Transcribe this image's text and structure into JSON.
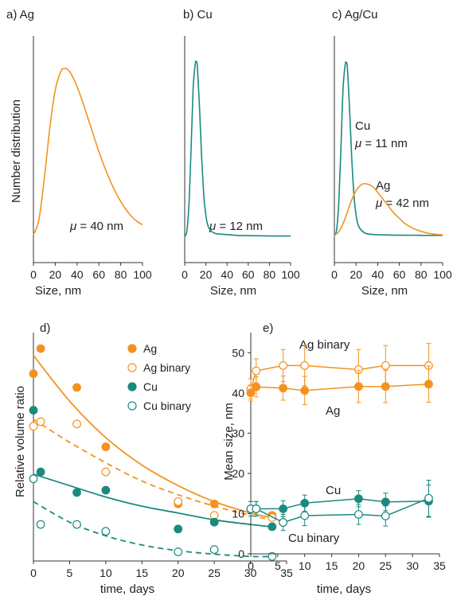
{
  "colors": {
    "ag": "#f39221",
    "cu": "#1a8a80",
    "axis": "#333333",
    "text": "#222222"
  },
  "chart_data": [
    {
      "id": "a",
      "type": "line",
      "title": "a) Ag",
      "xlabel": "Size, nm",
      "ylabel": "Number distribution",
      "xlim": [
        0,
        100
      ],
      "xticks": [
        "0",
        "20",
        "40",
        "60",
        "80",
        "100"
      ],
      "x": [
        0,
        5,
        10,
        15,
        20,
        25,
        28,
        32,
        36,
        40,
        45,
        50,
        55,
        60,
        65,
        70,
        75,
        80,
        85,
        90,
        95,
        100
      ],
      "series": [
        {
          "color": "ag",
          "values": [
            0,
            0.09,
            0.34,
            0.64,
            0.87,
            0.98,
            1.0,
            0.99,
            0.95,
            0.89,
            0.8,
            0.7,
            0.6,
            0.5,
            0.41,
            0.33,
            0.26,
            0.2,
            0.15,
            0.11,
            0.08,
            0.06
          ]
        }
      ],
      "annotations": [
        {
          "text": "μ = 40 nm",
          "symbol": "μ",
          "rest": " = 40 nm",
          "x": 33,
          "y": 0.1
        }
      ]
    },
    {
      "id": "b",
      "type": "line",
      "title": "b) Cu",
      "xlabel": "Size, nm",
      "xlim": [
        0,
        100
      ],
      "xticks": [
        "0",
        "20",
        "40",
        "60",
        "80",
        "100"
      ],
      "x": [
        0,
        2,
        4,
        6,
        8,
        10,
        11,
        12,
        14,
        16,
        18,
        20,
        22,
        25,
        30,
        40,
        50,
        60,
        70,
        80,
        90,
        100
      ],
      "series": [
        {
          "color": "cu",
          "values": [
            0,
            0.03,
            0.18,
            0.5,
            0.85,
            0.99,
            1.0,
            0.97,
            0.74,
            0.45,
            0.24,
            0.12,
            0.06,
            0.03,
            0.015,
            0.01,
            0.005,
            0.004,
            0.003,
            0.002,
            0.002,
            0.002
          ]
        }
      ],
      "annotations": [
        {
          "text": "μ = 12 nm",
          "symbol": "μ",
          "rest": " = 12 nm",
          "x": 25,
          "y": 0.11
        }
      ]
    },
    {
      "id": "c",
      "type": "line",
      "title": "c) Ag/Cu",
      "xlabel": "Size, nm",
      "xlim": [
        0,
        100
      ],
      "xticks": [
        "0",
        "20",
        "40",
        "60",
        "80",
        "100"
      ],
      "x_cu": [
        0,
        2,
        4,
        6,
        8,
        10,
        11,
        12,
        14,
        16,
        18,
        20,
        22,
        25,
        30,
        40,
        50,
        60,
        70,
        80,
        90,
        100
      ],
      "x_ag": [
        0,
        5,
        10,
        15,
        20,
        25,
        28,
        32,
        36,
        40,
        45,
        50,
        55,
        60,
        65,
        70,
        75,
        80,
        85,
        90,
        95,
        100
      ],
      "series": [
        {
          "color": "cu",
          "values": [
            0,
            0.03,
            0.18,
            0.5,
            0.85,
            0.99,
            1.0,
            0.97,
            0.74,
            0.45,
            0.24,
            0.12,
            0.06,
            0.03,
            0.01,
            0.005,
            0.003,
            0.002,
            0.002,
            0.001,
            0.001,
            0.001
          ]
        },
        {
          "color": "ag",
          "values": [
            0,
            0.03,
            0.1,
            0.19,
            0.26,
            0.295,
            0.3,
            0.295,
            0.28,
            0.25,
            0.21,
            0.17,
            0.13,
            0.1,
            0.07,
            0.05,
            0.035,
            0.025,
            0.015,
            0.01,
            0.006,
            0.004
          ]
        }
      ],
      "annotations": [
        {
          "text": "Cu",
          "x": 10,
          "y": 0.78
        },
        {
          "text": "μ = 11 nm",
          "symbol": "μ",
          "rest": " = 11 nm",
          "x": 10,
          "y": 0.63
        },
        {
          "text": "Ag",
          "x": 28,
          "y": 0.45
        },
        {
          "text": "μ = 42 nm",
          "symbol": "μ",
          "rest": " = 42 nm",
          "x": 28,
          "y": 0.31
        }
      ]
    },
    {
      "id": "d",
      "type": "scatter",
      "title": "d)",
      "xlabel": "time, days",
      "ylabel": "Relative volume ratio",
      "xlim": [
        0,
        35
      ],
      "ylim": [
        0,
        1
      ],
      "xticks": [
        "0",
        "5",
        "10",
        "15",
        "20",
        "25",
        "30",
        "35"
      ],
      "legend": {
        "position": "top-right",
        "entries": [
          "Ag",
          "Ag binary",
          "Cu",
          "Cu binary"
        ]
      },
      "series": [
        {
          "name": "Ag",
          "color": "ag",
          "marker": "filled",
          "x": [
            0,
            1,
            6,
            10,
            20,
            25,
            33
          ],
          "y": [
            0.82,
            0.93,
            0.76,
            0.5,
            0.25,
            0.25,
            0.2
          ],
          "fit": {
            "style": "solid",
            "x": [
              0,
              5,
              10,
              15,
              20,
              25,
              30,
              33
            ],
            "y": [
              0.9,
              0.7,
              0.54,
              0.42,
              0.33,
              0.26,
              0.21,
              0.19
            ]
          }
        },
        {
          "name": "Ag binary",
          "color": "ag",
          "marker": "open",
          "x": [
            0,
            1,
            6,
            10,
            20,
            25,
            33
          ],
          "y": [
            0.59,
            0.61,
            0.6,
            0.39,
            0.26,
            0.2,
            0.19
          ],
          "fit": {
            "style": "dashed",
            "x": [
              0,
              5,
              10,
              15,
              20,
              25,
              30,
              33
            ],
            "y": [
              0.62,
              0.52,
              0.43,
              0.35,
              0.29,
              0.24,
              0.2,
              0.18
            ]
          }
        },
        {
          "name": "Cu",
          "color": "cu",
          "marker": "filled",
          "x": [
            0,
            1,
            6,
            10,
            20,
            25,
            33
          ],
          "y": [
            0.66,
            0.39,
            0.3,
            0.31,
            0.14,
            0.17,
            0.15
          ],
          "fit": {
            "style": "solid",
            "x": [
              0,
              5,
              10,
              15,
              20,
              25,
              30,
              33
            ],
            "y": [
              0.38,
              0.33,
              0.28,
              0.24,
              0.21,
              0.18,
              0.16,
              0.15
            ]
          }
        },
        {
          "name": "Cu binary",
          "color": "cu",
          "marker": "open",
          "x": [
            0,
            1,
            6,
            10,
            20,
            25,
            33
          ],
          "y": [
            0.36,
            0.16,
            0.16,
            0.13,
            0.04,
            0.05,
            0.02
          ],
          "fit": {
            "style": "dashed",
            "x": [
              0,
              5,
              10,
              15,
              20,
              25,
              30,
              33
            ],
            "y": [
              0.26,
              0.17,
              0.11,
              0.07,
              0.045,
              0.03,
              0.02,
              0.02
            ]
          }
        }
      ]
    },
    {
      "id": "e",
      "type": "line",
      "title": "e)",
      "xlabel": "time, days",
      "ylabel": "Mean size, nm",
      "xlim": [
        0,
        35
      ],
      "ylim": [
        0,
        55
      ],
      "xticks": [
        "0",
        "5",
        "10",
        "15",
        "20",
        "25",
        "30",
        "35"
      ],
      "yticks": [
        "0",
        "10",
        "20",
        "30",
        "40",
        "50"
      ],
      "series": [
        {
          "name": "Ag binary",
          "color": "ag",
          "marker": "open",
          "x": [
            0,
            1,
            6,
            10,
            20,
            25,
            33
          ],
          "y": [
            41,
            45.5,
            46.8,
            46.8,
            45.8,
            46.8,
            46.8
          ],
          "err": [
            2.5,
            3,
            4,
            5,
            5,
            5,
            5.5
          ]
        },
        {
          "name": "Ag",
          "color": "ag",
          "marker": "filled",
          "x": [
            0,
            1,
            6,
            10,
            20,
            25,
            33
          ],
          "y": [
            40,
            41.5,
            41.2,
            40.6,
            41.6,
            41.6,
            42.2
          ],
          "err": [
            2,
            2.5,
            3,
            3.5,
            4,
            4,
            4.5
          ]
        },
        {
          "name": "Cu",
          "color": "cu",
          "marker": "filled",
          "x": [
            0,
            1,
            6,
            10,
            20,
            25,
            33
          ],
          "y": [
            11.2,
            11.2,
            11.2,
            12.6,
            13.7,
            12.9,
            13.1
          ],
          "err": [
            1.8,
            1.8,
            2,
            2,
            2,
            2.2,
            4
          ]
        },
        {
          "name": "Cu binary",
          "color": "cu",
          "marker": "open",
          "x": [
            0,
            1,
            6,
            10,
            20,
            25,
            33
          ],
          "y": [
            11.2,
            11.2,
            7.8,
            9.5,
            9.8,
            9.4,
            13.8
          ],
          "err": [
            1.8,
            1.8,
            2,
            2.5,
            2.5,
            2.5,
            4.5
          ]
        }
      ],
      "annotations": [
        {
          "text": "Ag binary",
          "x": 9,
          "y": 51.5
        },
        {
          "text": "Ag",
          "x": 10,
          "y": 35.5
        },
        {
          "text": "Cu",
          "x": 12.5,
          "y": 17.5
        },
        {
          "text": "Cu binary",
          "x": 8,
          "y": 5
        }
      ]
    }
  ]
}
